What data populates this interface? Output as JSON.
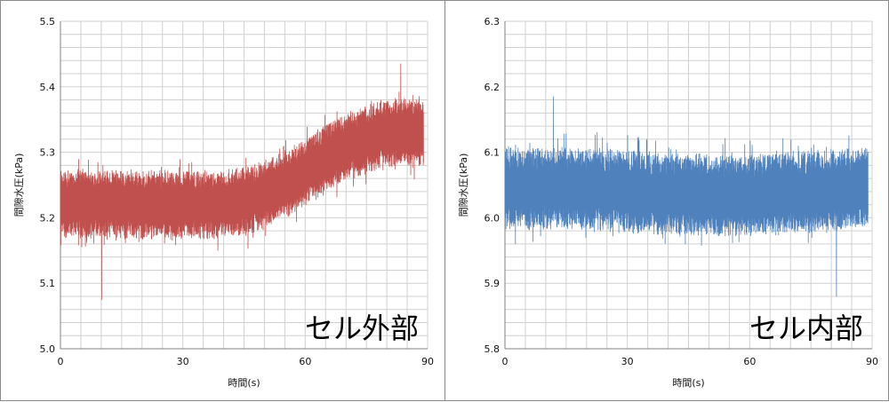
{
  "chart_data": [
    {
      "type": "line",
      "xlabel": "時間(s)",
      "ylabel": "間隙水圧(kPa)",
      "xlim": [
        0,
        90
      ],
      "ylim": [
        5.0,
        5.5
      ],
      "x_ticks": [
        "0",
        "30",
        "60",
        "90"
      ],
      "y_ticks": [
        "5.0",
        "5.1",
        "5.2",
        "5.3",
        "5.4",
        "5.5"
      ],
      "annotation": "セル外部",
      "grid": true,
      "color": "#c0504d",
      "series": [
        {
          "x": [
            0,
            10,
            20,
            30,
            40,
            45,
            50,
            55,
            60,
            65,
            70,
            75,
            80,
            85,
            89
          ],
          "y": [
            5.22,
            5.22,
            5.22,
            5.22,
            5.22,
            5.225,
            5.235,
            5.25,
            5.27,
            5.29,
            5.31,
            5.32,
            5.33,
            5.33,
            5.33
          ],
          "band": 0.05,
          "max": 5.435,
          "min": 5.075
        }
      ]
    },
    {
      "type": "line",
      "xlabel": "時間(s)",
      "ylabel": "間隙水圧(kPa)",
      "xlim": [
        0,
        90
      ],
      "ylim": [
        5.8,
        6.3
      ],
      "x_ticks": [
        "0",
        "30",
        "60",
        "90"
      ],
      "y_ticks": [
        "5.8",
        "5.9",
        "6.0",
        "6.1",
        "6.2",
        "6.3"
      ],
      "annotation": "セル内部",
      "grid": true,
      "color": "#4f81bd",
      "series": [
        {
          "x": [
            0,
            15,
            30,
            45,
            60,
            75,
            89
          ],
          "y": [
            6.045,
            6.045,
            6.04,
            6.035,
            6.035,
            6.04,
            6.045
          ],
          "band": 0.06,
          "max": 6.185,
          "min": 5.88
        }
      ]
    }
  ]
}
